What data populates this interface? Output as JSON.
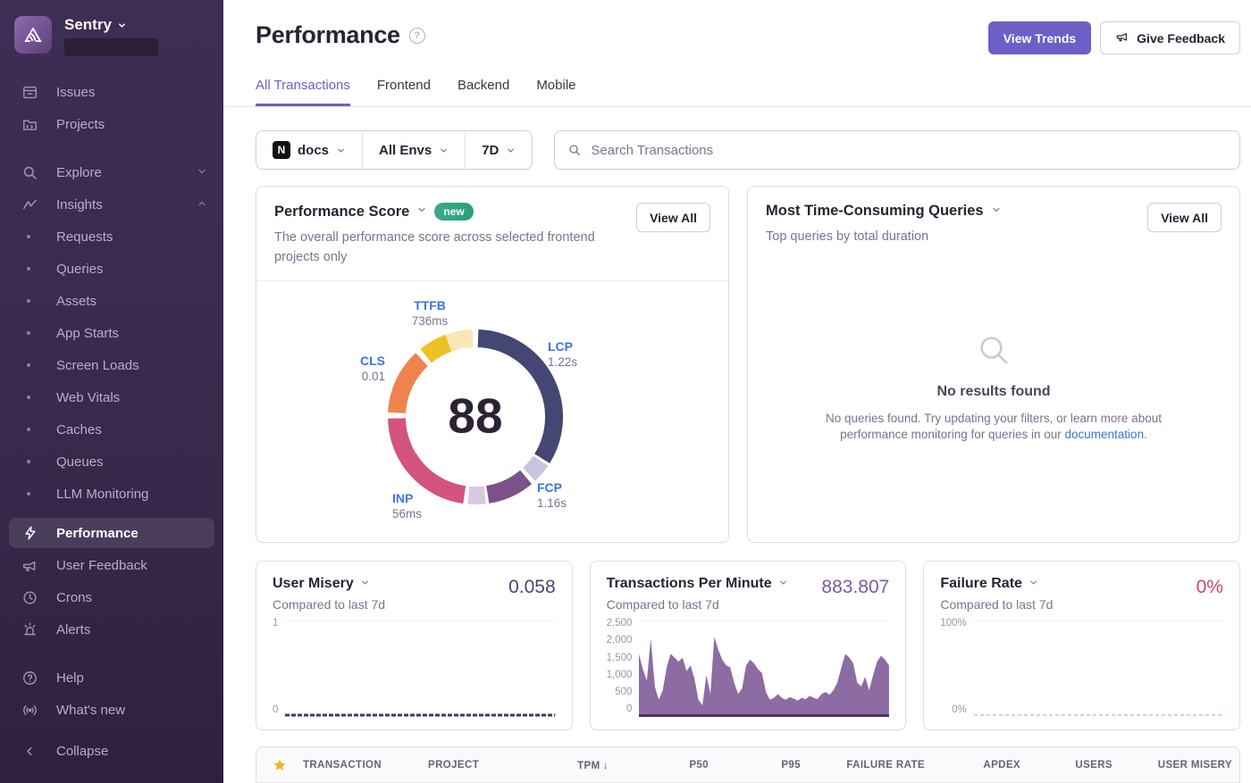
{
  "colors": {
    "accent": "#6c5fc7",
    "link": "#3c74db",
    "new_badge": "#2da084",
    "star": "#f2b712",
    "user_misery_value": "#444674",
    "tpm_value": "#7e5a9e",
    "failure_rate_value": "#d4426e"
  },
  "sidebar": {
    "brand": "Sentry",
    "items_primary": [
      {
        "label": "Issues"
      },
      {
        "label": "Projects"
      }
    ],
    "explore": {
      "label": "Explore"
    },
    "insights": {
      "label": "Insights",
      "children": [
        "Requests",
        "Queries",
        "Assets",
        "App Starts",
        "Screen Loads",
        "Web Vitals",
        "Caches",
        "Queues",
        "LLM Monitoring"
      ]
    },
    "items_secondary": [
      {
        "label": "Performance",
        "active": true
      },
      {
        "label": "User Feedback"
      },
      {
        "label": "Crons"
      },
      {
        "label": "Alerts"
      }
    ],
    "items_tertiary": [
      {
        "label": "Help"
      },
      {
        "label": "What's new"
      }
    ],
    "collapse_label": "Collapse"
  },
  "header": {
    "title": "Performance",
    "view_trends_label": "View Trends",
    "give_feedback_label": "Give Feedback"
  },
  "tabs": [
    {
      "label": "All Transactions",
      "active": true
    },
    {
      "label": "Frontend",
      "active": false
    },
    {
      "label": "Backend",
      "active": false
    },
    {
      "label": "Mobile",
      "active": false
    }
  ],
  "filters": {
    "project": "docs",
    "environment": "All Envs",
    "date_range": "7D",
    "search_placeholder": "Search Transactions"
  },
  "performance_score_card": {
    "title": "Performance Score",
    "badge": "new",
    "view_all_label": "View All",
    "description": "The overall performance score across selected frontend projects only",
    "score": "88"
  },
  "queries_card": {
    "title": "Most Time-Consuming Queries",
    "view_all_label": "View All",
    "subtitle": "Top queries by total duration",
    "empty_title": "No results found",
    "empty_text_before": "No queries found. Try updating your filters, or learn more about performance monitoring for queries in our ",
    "empty_link": "documentation",
    "empty_text_after": "."
  },
  "metric_cards": [
    {
      "title": "User Misery",
      "value": "0.058",
      "subtitle": "Compared to last 7d",
      "y_labels": [
        "1",
        "0"
      ]
    },
    {
      "title": "Transactions Per Minute",
      "value": "883.807",
      "subtitle": "Compared to last 7d",
      "y_labels": [
        "2,500",
        "2,000",
        "1,500",
        "1,000",
        "500",
        "0"
      ]
    },
    {
      "title": "Failure Rate",
      "value": "0%",
      "subtitle": "Compared to last 7d",
      "y_labels": [
        "100%",
        "0%"
      ]
    }
  ],
  "table": {
    "star_column": "starred",
    "columns": [
      "TRANSACTION",
      "PROJECT",
      "TPM",
      "P50",
      "P95",
      "FAILURE RATE",
      "APDEX",
      "USERS",
      "USER MISERY"
    ],
    "sorted_column": "TPM",
    "sort_direction": "desc",
    "sort_glyph": "↓"
  },
  "chart_data": [
    {
      "type": "donut",
      "title": "Performance Score",
      "center_value": 88,
      "metrics": [
        {
          "name": "TTFB",
          "value": "736ms"
        },
        {
          "name": "LCP",
          "value": "1.22s"
        },
        {
          "name": "FCP",
          "value": "1.16s"
        },
        {
          "name": "INP",
          "value": "56ms"
        },
        {
          "name": "CLS",
          "value": "0.01"
        }
      ],
      "segments": [
        {
          "label": "LCP",
          "color": "#444674",
          "start": 2,
          "end": 122
        },
        {
          "label": "LCP-remainder",
          "color": "#c9c4dd",
          "start": 124,
          "end": 137
        },
        {
          "label": "FCP",
          "color": "#7b5188",
          "start": 140,
          "end": 171
        },
        {
          "label": "FCP-remainder",
          "color": "#d9c8e1",
          "start": 173,
          "end": 185
        },
        {
          "label": "INP",
          "color": "#d4537e",
          "start": 188,
          "end": 269
        },
        {
          "label": "CLS",
          "color": "#ee834e",
          "start": 273,
          "end": 317
        },
        {
          "label": "TTFB",
          "color": "#edc227",
          "start": 321,
          "end": 340
        },
        {
          "label": "TTFB-remainder",
          "color": "#f9e7b7",
          "start": 340,
          "end": 358
        }
      ]
    },
    {
      "type": "line",
      "title": "User Misery",
      "ylim": [
        0,
        1
      ],
      "line_color": "#3b3a68",
      "line_width": 3,
      "dash": "5 2",
      "values": [
        0.01,
        0.01,
        0.01,
        0.01,
        0.01,
        0.01,
        0.01,
        0.01,
        0.01,
        0.01,
        0.01,
        0.01,
        0.01,
        0.01,
        0.01,
        0.01,
        0.01,
        0.01,
        0.01,
        0.01
      ]
    },
    {
      "type": "area",
      "title": "Transactions Per Minute",
      "ylim": [
        0,
        2500
      ],
      "fill_color": "#7d5796",
      "values": [
        1650,
        1250,
        950,
        2050,
        800,
        450,
        700,
        1300,
        1650,
        1550,
        1450,
        1550,
        1200,
        1350,
        1000,
        450,
        300,
        1100,
        600,
        2100,
        1750,
        1500,
        1350,
        1300,
        900,
        600,
        750,
        1350,
        1500,
        1400,
        1250,
        1150,
        650,
        450,
        500,
        600,
        500,
        450,
        520,
        480,
        430,
        500,
        460,
        550,
        500,
        470,
        600,
        650,
        580,
        700,
        900,
        1300,
        1650,
        1550,
        1400,
        900,
        800,
        1050,
        700,
        1100,
        1450,
        1600,
        1500,
        1350
      ]
    },
    {
      "type": "line",
      "title": "Failure Rate",
      "ylim": [
        0,
        100
      ],
      "line_color": "#e2a2ba",
      "line_width": 1.3,
      "dash": "4 3",
      "values": [
        0,
        0,
        0,
        0,
        0,
        0,
        0,
        0,
        0,
        0,
        0,
        0,
        0,
        0,
        0,
        0,
        0,
        0,
        0,
        0
      ]
    }
  ]
}
